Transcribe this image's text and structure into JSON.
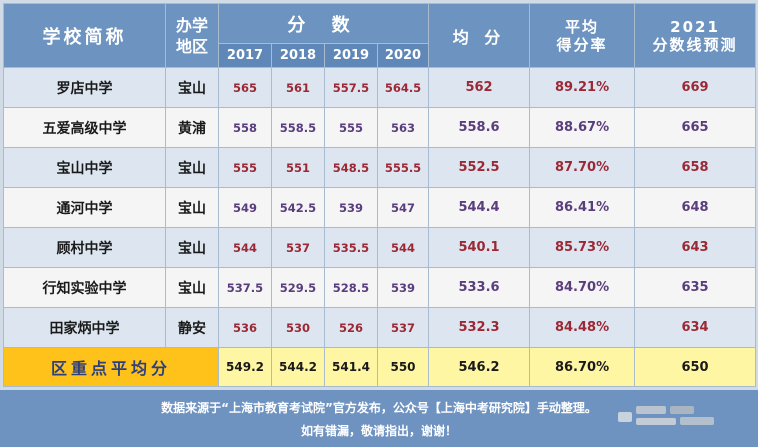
{
  "header": {
    "school": "学校简称",
    "district_l1": "办学",
    "district_l2": "地区",
    "scores": "分 数",
    "years": [
      "2017",
      "2018",
      "2019",
      "2020"
    ],
    "average": "均 分",
    "rate_l1": "平均",
    "rate_l2": "得分率",
    "pred_l1": "2021",
    "pred_l2": "分数线预测"
  },
  "rows": [
    {
      "school": "罗店中学",
      "district": "宝山",
      "scores": [
        "565",
        "561",
        "557.5",
        "564.5"
      ],
      "average": "562",
      "rate": "89.21%",
      "prediction": "669"
    },
    {
      "school": "五爱高级中学",
      "district": "黄浦",
      "scores": [
        "558",
        "558.5",
        "555",
        "563"
      ],
      "average": "558.6",
      "rate": "88.67%",
      "prediction": "665"
    },
    {
      "school": "宝山中学",
      "district": "宝山",
      "scores": [
        "555",
        "551",
        "548.5",
        "555.5"
      ],
      "average": "552.5",
      "rate": "87.70%",
      "prediction": "658"
    },
    {
      "school": "通河中学",
      "district": "宝山",
      "scores": [
        "549",
        "542.5",
        "539",
        "547"
      ],
      "average": "544.4",
      "rate": "86.41%",
      "prediction": "648"
    },
    {
      "school": "顾村中学",
      "district": "宝山",
      "scores": [
        "544",
        "537",
        "535.5",
        "544"
      ],
      "average": "540.1",
      "rate": "85.73%",
      "prediction": "643"
    },
    {
      "school": "行知实验中学",
      "district": "宝山",
      "scores": [
        "537.5",
        "529.5",
        "528.5",
        "539"
      ],
      "average": "533.6",
      "rate": "84.70%",
      "prediction": "635"
    },
    {
      "school": "田家炳中学",
      "district": "静安",
      "scores": [
        "536",
        "530",
        "526",
        "537"
      ],
      "average": "532.3",
      "rate": "84.48%",
      "prediction": "634"
    }
  ],
  "summary": {
    "label": "区重点平均分",
    "scores": [
      "549.2",
      "544.2",
      "541.4",
      "550"
    ],
    "average": "546.2",
    "rate": "86.70%",
    "prediction": "650"
  },
  "footer": {
    "line1": "数据来源于“上海市教育考试院”官方发布，公众号【上海中考研究院】手动整理。",
    "line2": "如有错漏，敬请指出，谢谢！"
  },
  "colors": {
    "header_bg": "#6d93c0",
    "row_odd": "#dde6f0",
    "row_even": "#f5f5f5",
    "score_red": "#9b2834",
    "score_purple": "#5a3d7c",
    "summary_label_bg": "#ffc21a",
    "summary_bg": "#fff6a3",
    "footer_bg": "#6f93c1"
  }
}
